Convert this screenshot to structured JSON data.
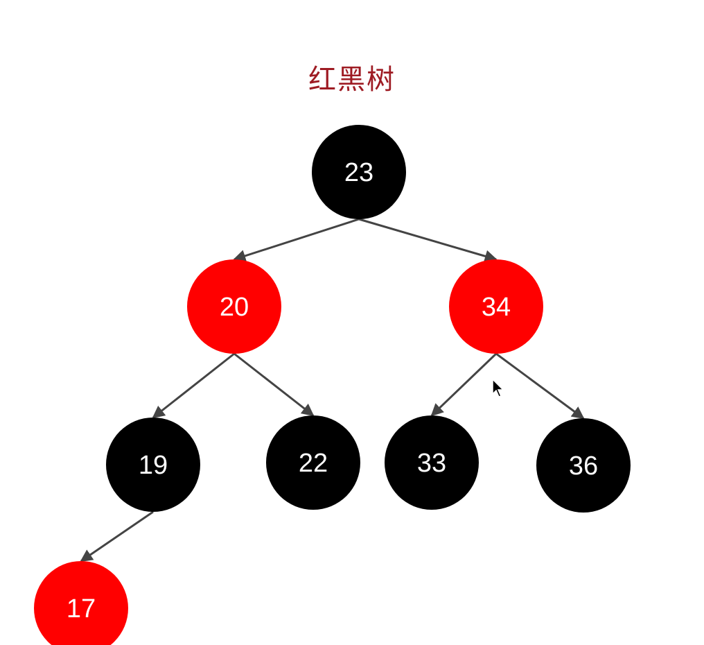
{
  "title": "红黑树",
  "colors": {
    "red": "#ff0000",
    "black": "#000000",
    "edge": "#444444",
    "title": "#9e1b23"
  },
  "tree": {
    "nodes": [
      {
        "id": "n23",
        "value": "23",
        "color": "black"
      },
      {
        "id": "n20",
        "value": "20",
        "color": "red"
      },
      {
        "id": "n34",
        "value": "34",
        "color": "red"
      },
      {
        "id": "n19",
        "value": "19",
        "color": "black"
      },
      {
        "id": "n22",
        "value": "22",
        "color": "black"
      },
      {
        "id": "n33",
        "value": "33",
        "color": "black"
      },
      {
        "id": "n36",
        "value": "36",
        "color": "black"
      },
      {
        "id": "n17",
        "value": "17",
        "color": "red"
      }
    ],
    "edges": [
      {
        "from": "n23",
        "to": "n20"
      },
      {
        "from": "n23",
        "to": "n34"
      },
      {
        "from": "n20",
        "to": "n19"
      },
      {
        "from": "n20",
        "to": "n22"
      },
      {
        "from": "n34",
        "to": "n33"
      },
      {
        "from": "n34",
        "to": "n36"
      },
      {
        "from": "n19",
        "to": "n17"
      }
    ]
  }
}
